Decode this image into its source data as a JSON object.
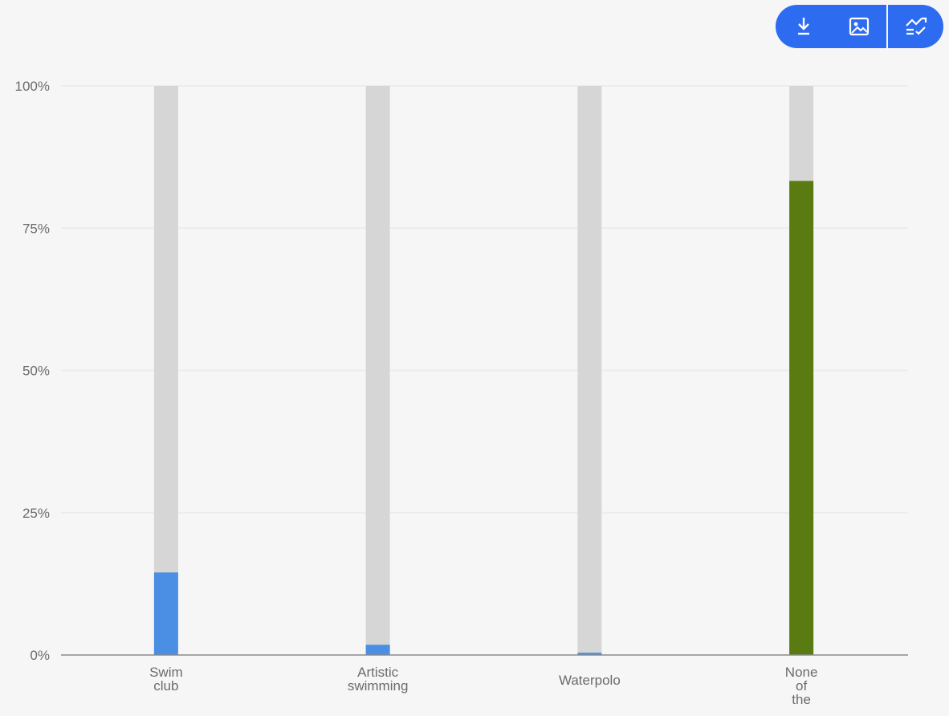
{
  "toolbar": {
    "buttons": [
      {
        "icon": "download-icon"
      },
      {
        "icon": "image-icon"
      },
      {
        "icon": "chart-settings-icon"
      }
    ],
    "color": "#2d6bf0"
  },
  "chart_data": {
    "type": "bar",
    "stacked_against_total": true,
    "categories": [
      [
        "Swim",
        "club"
      ],
      [
        "Artistic",
        "swimming"
      ],
      [
        "Waterpolo"
      ],
      [
        "None",
        "of",
        "the"
      ]
    ],
    "values": [
      14.5,
      1.8,
      0.4,
      83.3
    ],
    "bar_colors": [
      "#4a8fe3",
      "#4a8fe3",
      "#4a8fe3",
      "#5a7a12"
    ],
    "background_bar_color": "#d6d6d6",
    "yticks": [
      "0%",
      "25%",
      "50%",
      "75%",
      "100%"
    ],
    "ylim": [
      0,
      100
    ],
    "grid": true,
    "title": "",
    "xlabel": "",
    "ylabel": ""
  }
}
